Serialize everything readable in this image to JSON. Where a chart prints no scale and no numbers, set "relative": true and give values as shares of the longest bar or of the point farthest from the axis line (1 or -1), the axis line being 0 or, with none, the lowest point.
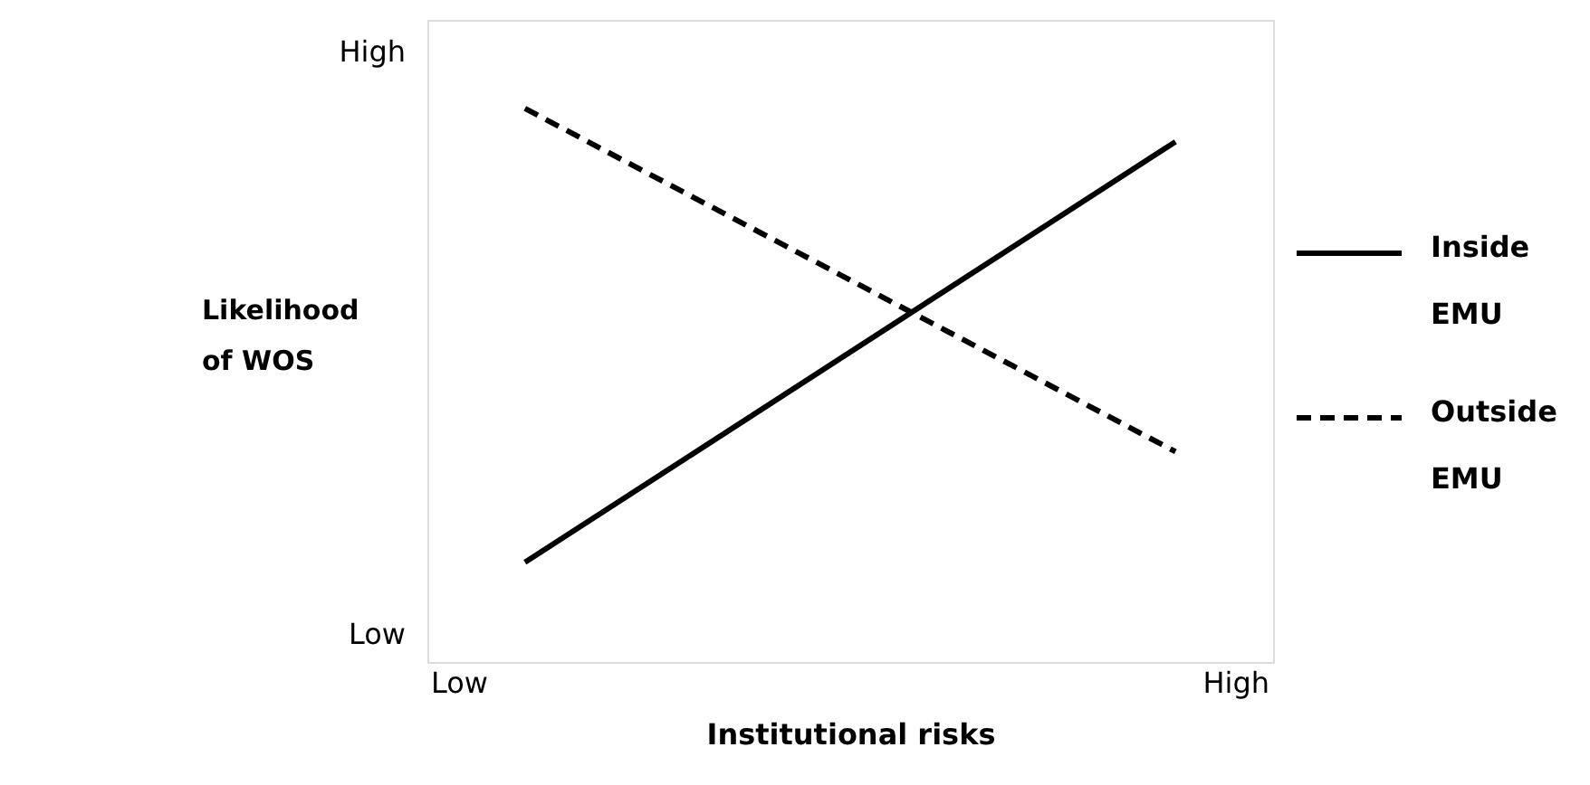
{
  "chart_data": {
    "type": "line",
    "xlabel": "Institutional risks",
    "ylabel": "Likelihood of WOS",
    "categories": [
      null,
      null
    ],
    "relative": true,
    "annotations": [
      "High",
      "Low",
      "Low",
      "High"
    ],
    "grid": false,
    "legend": "right",
    "marker": "none",
    "series": [
      {
        "name": "Inside EMU",
        "color": "#000000",
        "line_style": "solid",
        "values": [
          0.18,
          0.94
        ]
      },
      {
        "name": "Outside EMU",
        "color": "#000000",
        "line_style": "dashed",
        "values": [
          1,
          0.38
        ]
      }
    ]
  }
}
